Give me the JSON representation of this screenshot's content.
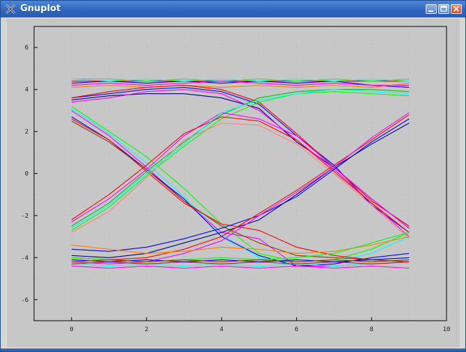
{
  "window": {
    "title": "Gnuplot",
    "app_icon": "gnuplot-x-icon",
    "buttons": [
      "minimize-icon",
      "maximize-icon",
      "close-icon"
    ]
  },
  "colors": {
    "titlebar": "#2f66bd",
    "plot_background": "#c7c7c7",
    "frame": "#000000"
  },
  "chart_data": {
    "type": "line",
    "title": "",
    "xlabel": "",
    "ylabel": "",
    "xlim": [
      -1,
      10
    ],
    "ylim": [
      -7,
      7
    ],
    "xticks": [
      "0",
      "2",
      "4",
      "6",
      "8",
      "10"
    ],
    "yticks": [
      "-6",
      "-4",
      "-2",
      "0",
      "2",
      "4",
      "6"
    ],
    "grid": true,
    "legend": "none",
    "x": [
      0,
      1,
      2,
      3,
      4,
      5,
      6,
      7,
      8,
      9
    ],
    "series": [
      {
        "color": "#ff0000",
        "values": [
          4.4,
          4.4,
          4.4,
          4.4,
          4.4,
          4.4,
          4.4,
          4.4,
          4.4,
          4.4
        ]
      },
      {
        "color": "#00ff00",
        "values": [
          4.5,
          4.5,
          4.4,
          4.5,
          4.4,
          4.5,
          4.4,
          4.5,
          4.4,
          4.5
        ]
      },
      {
        "color": "#0000ff",
        "values": [
          4.3,
          4.4,
          4.3,
          4.4,
          4.3,
          4.4,
          4.3,
          4.4,
          4.2,
          4.1
        ]
      },
      {
        "color": "#ff00ff",
        "values": [
          4.2,
          4.3,
          4.2,
          4.3,
          4.4,
          4.3,
          4.2,
          4.3,
          4.2,
          4.2
        ]
      },
      {
        "color": "#00ffff",
        "values": [
          4.5,
          4.4,
          4.5,
          4.4,
          4.5,
          4.4,
          4.5,
          4.4,
          4.5,
          4.4
        ]
      },
      {
        "color": "#ff8000",
        "values": [
          4.1,
          4.2,
          4.1,
          4.2,
          4.1,
          4.2,
          4.1,
          4.2,
          4.1,
          4.3
        ]
      },
      {
        "color": "#000080",
        "values": [
          3.5,
          3.7,
          3.8,
          3.8,
          3.6,
          3.1,
          1.5,
          0.3,
          -1.2,
          -2.6
        ]
      },
      {
        "color": "#0000ff",
        "values": [
          3.6,
          3.8,
          4.0,
          4.1,
          3.9,
          3.3,
          1.8,
          0.4,
          -1.5,
          -2.8
        ]
      },
      {
        "color": "#ff00ff",
        "values": [
          3.4,
          3.6,
          3.9,
          4.0,
          3.8,
          3.0,
          1.6,
          0.2,
          -1.4,
          -3.0
        ]
      },
      {
        "color": "#ff0000",
        "values": [
          3.6,
          3.9,
          4.1,
          4.2,
          4.0,
          3.4,
          1.9,
          0.3,
          -1.3,
          -2.5
        ]
      },
      {
        "color": "#00ff00",
        "values": [
          3.2,
          2.0,
          0.8,
          -0.7,
          -2.4,
          -3.8,
          -4.2,
          -4.1,
          -3.6,
          -2.8
        ]
      },
      {
        "color": "#00ffff",
        "values": [
          3.1,
          1.9,
          0.5,
          -1.1,
          -2.9,
          -4.0,
          -4.3,
          -4.2,
          -3.8,
          -3.0
        ]
      },
      {
        "color": "#ff00ff",
        "values": [
          3.0,
          1.8,
          0.3,
          -1.3,
          -2.8,
          -3.1,
          -4.4,
          -4.4,
          -4.3,
          -4.2
        ]
      },
      {
        "color": "#0000ff",
        "values": [
          2.7,
          1.6,
          0.2,
          -1.2,
          -3.0,
          -3.9,
          -4.4,
          -4.3,
          -4.0,
          -3.8
        ]
      },
      {
        "color": "#ff0000",
        "values": [
          2.6,
          1.6,
          0.1,
          -1.4,
          -2.4,
          -2.7,
          -3.5,
          -3.9,
          -4.1,
          -4.2
        ]
      },
      {
        "color": "#804000",
        "values": [
          2.5,
          1.5,
          0.2,
          -1.3,
          -2.5,
          -3.3,
          -3.9,
          -4.0,
          -4.1,
          -4.2
        ]
      },
      {
        "color": "#00ff00",
        "values": [
          -2.7,
          -1.6,
          -0.1,
          1.3,
          2.6,
          3.4,
          3.8,
          3.9,
          3.8,
          3.7
        ]
      },
      {
        "color": "#00c000",
        "values": [
          -2.5,
          -1.4,
          0.1,
          1.5,
          2.8,
          3.6,
          3.9,
          4.0,
          4.0,
          3.9
        ]
      },
      {
        "color": "#ff00ff",
        "values": [
          -2.3,
          -1.2,
          0.2,
          1.8,
          2.9,
          2.6,
          1.8,
          0.3,
          -1.2,
          -2.6
        ]
      },
      {
        "color": "#ff0000",
        "values": [
          -2.2,
          -1.0,
          0.4,
          1.9,
          2.7,
          2.5,
          1.6,
          0.1,
          -1.4,
          -2.8
        ]
      },
      {
        "color": "#ff8080",
        "values": [
          -2.8,
          -1.8,
          -0.2,
          1.6,
          2.4,
          2.3,
          1.4,
          0.0,
          -1.5,
          -3.1
        ]
      },
      {
        "color": "#00ffff",
        "values": [
          -2.6,
          -1.5,
          0.0,
          1.4,
          2.9,
          3.5,
          3.8,
          4.0,
          3.9,
          3.8
        ]
      },
      {
        "color": "#0000ff",
        "values": [
          -3.6,
          -3.7,
          -3.5,
          -3.1,
          -2.6,
          -2.0,
          -1.1,
          0.2,
          1.5,
          2.6
        ]
      },
      {
        "color": "#000080",
        "values": [
          -3.9,
          -4.0,
          -3.8,
          -3.3,
          -2.8,
          -2.2,
          -1.0,
          0.3,
          1.4,
          2.4
        ]
      },
      {
        "color": "#ff0000",
        "values": [
          -4.0,
          -4.1,
          -4.0,
          -3.6,
          -3.0,
          -1.9,
          -0.8,
          0.4,
          1.6,
          2.8
        ]
      },
      {
        "color": "#ff00ff",
        "values": [
          -4.2,
          -4.3,
          -4.2,
          -3.8,
          -3.2,
          -2.0,
          -0.9,
          0.3,
          1.7,
          2.9
        ]
      },
      {
        "color": "#ff8000",
        "values": [
          -3.4,
          -3.6,
          -3.8,
          -3.7,
          -3.5,
          -3.6,
          -3.8,
          -3.7,
          -3.4,
          -3.0
        ]
      },
      {
        "color": "#00ff00",
        "values": [
          -4.0,
          -4.1,
          -4.2,
          -4.1,
          -4.0,
          -4.1,
          -4.0,
          -3.8,
          -3.3,
          -2.8
        ]
      },
      {
        "color": "#00ffff",
        "values": [
          -4.3,
          -4.4,
          -4.3,
          -4.4,
          -4.3,
          -4.4,
          -4.3,
          -4.4,
          -4.3,
          -4.2
        ]
      },
      {
        "color": "#ff0000",
        "values": [
          -4.3,
          -4.2,
          -4.3,
          -4.2,
          -4.3,
          -4.2,
          -4.3,
          -4.2,
          -4.3,
          -4.2
        ]
      },
      {
        "color": "#0000ff",
        "values": [
          -4.1,
          -4.2,
          -4.1,
          -4.2,
          -4.1,
          -4.2,
          -4.1,
          -4.2,
          -4.1,
          -4.0
        ]
      },
      {
        "color": "#ff00ff",
        "values": [
          -4.4,
          -4.5,
          -4.4,
          -4.5,
          -4.4,
          -4.5,
          -4.4,
          -4.5,
          -4.4,
          -4.5
        ]
      },
      {
        "color": "#804000",
        "values": [
          -4.2,
          -4.1,
          -4.2,
          -4.1,
          -4.2,
          -4.1,
          -4.2,
          -4.1,
          -4.2,
          -4.1
        ]
      }
    ]
  }
}
